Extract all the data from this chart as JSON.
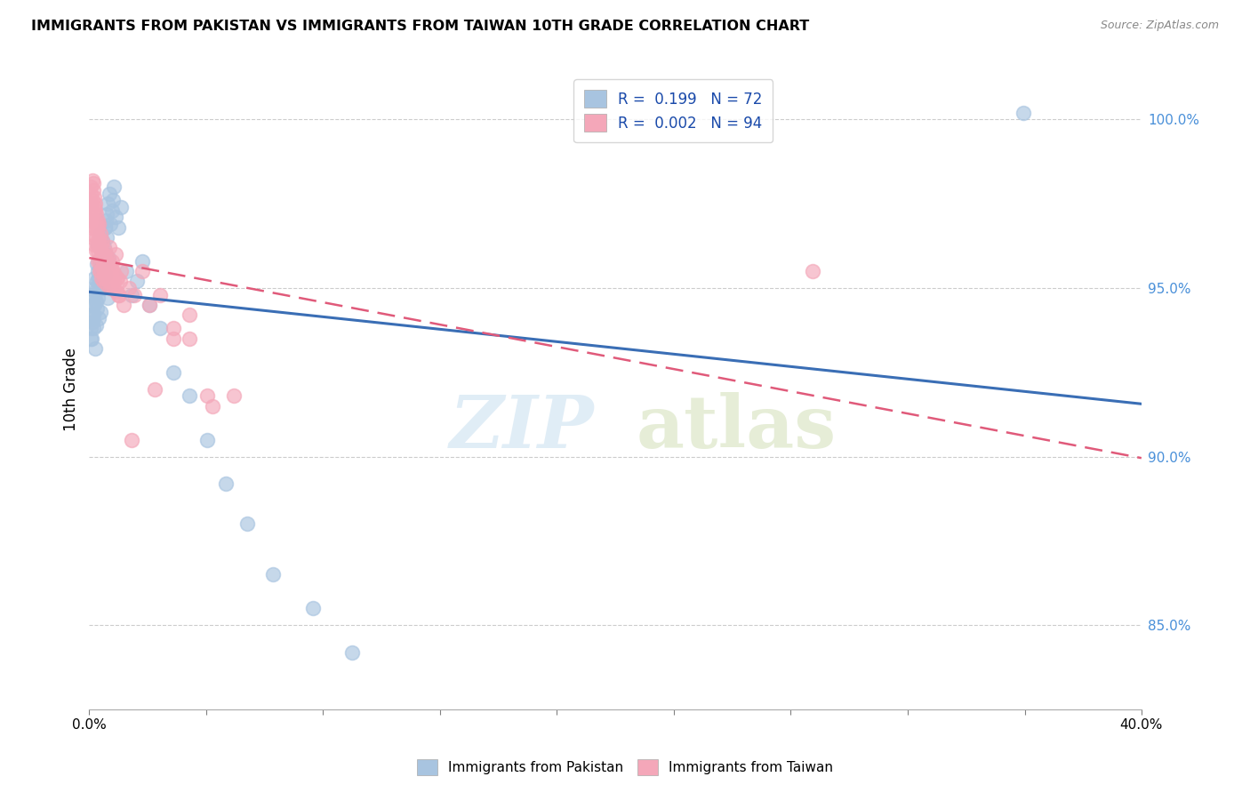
{
  "title": "IMMIGRANTS FROM PAKISTAN VS IMMIGRANTS FROM TAIWAN 10TH GRADE CORRELATION CHART",
  "source": "Source: ZipAtlas.com",
  "ylabel": "10th Grade",
  "xlim": [
    0.0,
    40.0
  ],
  "ylim": [
    82.5,
    101.5
  ],
  "yticks": [
    85.0,
    90.0,
    95.0,
    100.0
  ],
  "ytick_labels": [
    "85.0%",
    "90.0%",
    "95.0%",
    "100.0%"
  ],
  "xticks": [
    0.0,
    4.44,
    8.89,
    13.33,
    17.78,
    22.22,
    26.67,
    31.11,
    35.56,
    40.0
  ],
  "xtick_labels": [
    "0.0%",
    "",
    "",
    "",
    "",
    "",
    "",
    "",
    "",
    "40.0%"
  ],
  "pakistan_R": 0.199,
  "pakistan_N": 72,
  "taiwan_R": 0.002,
  "taiwan_N": 94,
  "pakistan_color": "#a8c4e0",
  "taiwan_color": "#f4a7b9",
  "pakistan_line_color": "#3a6eb5",
  "taiwan_line_color": "#e05a7a",
  "background_color": "#ffffff",
  "pakistan_x": [
    0.05,
    0.08,
    0.1,
    0.12,
    0.13,
    0.15,
    0.16,
    0.18,
    0.2,
    0.22,
    0.23,
    0.25,
    0.27,
    0.28,
    0.3,
    0.32,
    0.33,
    0.35,
    0.37,
    0.38,
    0.4,
    0.42,
    0.43,
    0.45,
    0.47,
    0.5,
    0.52,
    0.55,
    0.58,
    0.6,
    0.62,
    0.65,
    0.68,
    0.7,
    0.75,
    0.8,
    0.85,
    0.9,
    0.95,
    1.0,
    1.1,
    1.2,
    1.4,
    1.6,
    1.8,
    2.0,
    2.3,
    2.7,
    3.2,
    3.8,
    4.5,
    5.2,
    6.0,
    7.0,
    8.5,
    10.0,
    0.05,
    0.09,
    0.14,
    0.19,
    0.24,
    0.29,
    0.34,
    0.39,
    0.44,
    0.49,
    0.54,
    0.59,
    0.64,
    0.69,
    0.74,
    35.5
  ],
  "pakistan_y": [
    93.8,
    94.2,
    93.5,
    94.5,
    94.0,
    93.8,
    94.2,
    94.5,
    94.8,
    93.2,
    95.0,
    94.6,
    93.9,
    95.2,
    94.4,
    95.5,
    94.7,
    95.3,
    94.1,
    95.8,
    95.0,
    95.6,
    94.3,
    95.9,
    96.1,
    96.4,
    95.7,
    96.2,
    95.4,
    96.8,
    97.0,
    96.5,
    97.2,
    97.5,
    97.8,
    96.9,
    97.3,
    97.6,
    98.0,
    97.1,
    96.8,
    97.4,
    95.5,
    94.8,
    95.2,
    95.8,
    94.5,
    93.8,
    92.5,
    91.8,
    90.5,
    89.2,
    88.0,
    86.5,
    85.5,
    84.2,
    93.5,
    94.8,
    94.1,
    95.3,
    94.9,
    95.7,
    96.3,
    95.1,
    96.6,
    95.4,
    95.0,
    96.8,
    96.0,
    94.7,
    95.9,
    100.2
  ],
  "taiwan_x": [
    0.05,
    0.07,
    0.09,
    0.11,
    0.13,
    0.15,
    0.16,
    0.18,
    0.19,
    0.21,
    0.22,
    0.24,
    0.25,
    0.27,
    0.28,
    0.3,
    0.31,
    0.33,
    0.34,
    0.36,
    0.37,
    0.39,
    0.4,
    0.42,
    0.43,
    0.45,
    0.47,
    0.48,
    0.5,
    0.52,
    0.54,
    0.55,
    0.57,
    0.58,
    0.6,
    0.62,
    0.65,
    0.68,
    0.7,
    0.72,
    0.75,
    0.78,
    0.8,
    0.85,
    0.9,
    0.95,
    1.0,
    1.05,
    1.1,
    1.2,
    1.3,
    1.5,
    1.7,
    2.0,
    2.3,
    2.7,
    3.2,
    3.8,
    4.5,
    0.06,
    0.1,
    0.14,
    0.17,
    0.2,
    0.23,
    0.26,
    0.29,
    0.32,
    0.35,
    0.38,
    0.41,
    0.44,
    0.47,
    0.53,
    0.56,
    0.63,
    0.66,
    0.73,
    0.76,
    0.83,
    0.86,
    0.93,
    0.96,
    1.03,
    1.06,
    1.13,
    1.16,
    3.2,
    3.8,
    4.7,
    27.5,
    1.6,
    2.5,
    5.5
  ],
  "taiwan_y": [
    97.8,
    98.0,
    97.5,
    98.2,
    97.6,
    97.9,
    98.1,
    97.4,
    97.7,
    96.8,
    97.3,
    97.0,
    96.5,
    97.2,
    96.7,
    96.3,
    97.0,
    96.8,
    96.1,
    96.5,
    96.9,
    96.2,
    95.8,
    96.6,
    95.5,
    96.3,
    95.9,
    96.4,
    95.6,
    95.2,
    96.0,
    95.7,
    95.4,
    96.1,
    95.3,
    95.8,
    95.5,
    95.1,
    95.9,
    95.4,
    96.2,
    95.7,
    95.0,
    95.8,
    95.5,
    95.2,
    96.0,
    95.3,
    94.8,
    95.5,
    94.5,
    95.0,
    94.8,
    95.5,
    94.5,
    94.8,
    93.5,
    94.2,
    91.8,
    97.0,
    96.8,
    96.5,
    97.2,
    96.3,
    97.5,
    96.1,
    96.9,
    95.8,
    96.4,
    95.5,
    96.2,
    95.9,
    95.3,
    95.6,
    96.0,
    95.4,
    95.8,
    95.2,
    95.7,
    95.1,
    95.5,
    95.0,
    95.4,
    94.9,
    95.3,
    94.8,
    95.2,
    93.8,
    93.5,
    91.5,
    95.5,
    90.5,
    92.0,
    91.8
  ]
}
